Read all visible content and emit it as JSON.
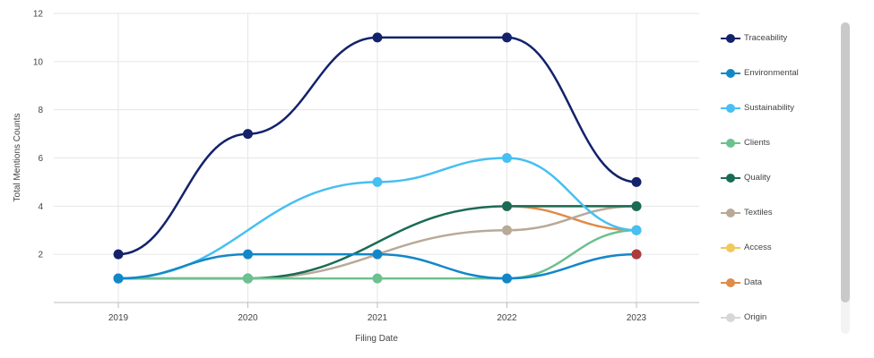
{
  "chart_data": {
    "type": "line",
    "title": "",
    "xlabel": "Filing Date",
    "ylabel": "Total Mentions Counts",
    "categories": [
      "2019",
      "2020",
      "2021",
      "2022",
      "2023"
    ],
    "yticks": [
      "2",
      "4",
      "6",
      "8",
      "10",
      "12"
    ],
    "ylim": [
      0,
      12
    ],
    "grid": true,
    "legend_position": "right",
    "series": [
      {
        "name": "Traceability",
        "color": "#13226a",
        "values": [
          2,
          7,
          11,
          11,
          5
        ]
      },
      {
        "name": "Environmental",
        "color": "#1287c8",
        "values": [
          1,
          2,
          2,
          1,
          2
        ]
      },
      {
        "name": "Sustainability",
        "color": "#46bff2",
        "values": [
          1,
          null,
          5,
          6,
          3
        ]
      },
      {
        "name": "Clients",
        "color": "#6cc18e",
        "values": [
          1,
          1,
          1,
          1,
          3
        ]
      },
      {
        "name": "Quality",
        "color": "#1a6b55",
        "values": [
          1,
          1,
          null,
          4,
          4
        ]
      },
      {
        "name": "Textiles",
        "color": "#b8aa98",
        "values": [
          1,
          1,
          null,
          3,
          4
        ]
      },
      {
        "name": "Access",
        "color": "#f2c75b",
        "values": [
          null,
          null,
          null,
          4,
          4
        ]
      },
      {
        "name": "Data",
        "color": "#e08b47",
        "values": [
          null,
          null,
          null,
          4,
          3
        ]
      },
      {
        "name": "Origin",
        "color": "#d7d7d7",
        "values": [
          null,
          null,
          null,
          3,
          4
        ]
      }
    ],
    "highlight_points": [
      {
        "category": "2023",
        "value": 2,
        "color": "#b03a3a"
      }
    ]
  }
}
